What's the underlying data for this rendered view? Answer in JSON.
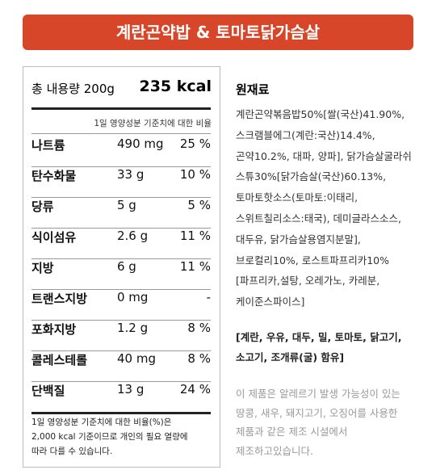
{
  "header": {
    "title": "계란곤약밥 & 토마토닭가슴살"
  },
  "nutrition": {
    "total": "총 내용량 200g",
    "calories": "235 kcal",
    "basis": "1일 영양성분 기준치에 대한 비율",
    "rows": [
      [
        "나트륨",
        "490 mg",
        "25 %"
      ],
      [
        "탄수화물",
        "33 g",
        "10 %"
      ],
      [
        "당류",
        "5 g",
        "5 %"
      ],
      [
        "식이섬유",
        "2.6 g",
        "11 %"
      ],
      [
        "지방",
        "6 g",
        "11 %"
      ],
      [
        "트랜스지방",
        "0 mg",
        "-"
      ],
      [
        "포화지방",
        "1.2 g",
        "8 %"
      ],
      [
        "콜레스테롤",
        "40 mg",
        "8 %"
      ],
      [
        "단백질",
        "13 g",
        "24 %"
      ]
    ],
    "footnote": [
      "1일 영양성분 기준치에 대한 비율(%)은",
      "2,000 kcal 기준이므로 개인의 필요 열량에",
      "따라 다를 수 있습니다."
    ]
  },
  "ingredients": {
    "title": "원재료",
    "lines": [
      "계란곤약볶음밥50%[쌀(국산)41.90%,",
      "스크램블에그(계란:국산)14.4%,",
      "곤약10.2%, 대파, 양파], 닭가슴살굴라쉬",
      "스튜30%[닭가슴살(국산)60.13%,",
      "토마토핫소스(토마토:이태리,",
      "스위트칠리소스:태국), 데미글라스소스,",
      "대두유, 닭가슴살용염지분말],",
      "브로컬리10%, 로스트파프리카10%",
      "[파프리카,설탕, 오레가노, 카레분,",
      "케이준스파이스]"
    ],
    "allergens": [
      "[계란, 우유, 대두, 밀, 토마토, 닭고기,",
      "소고기, 조개류(굴) 함유]"
    ],
    "notice": [
      "이 제품은 알레르기 발생 가능성이 있는",
      "땅콩, 새우, 돼지고기, 오징어를 사용한",
      "제품과 같은 제조 시설에서",
      "제조하고있습니다."
    ]
  }
}
